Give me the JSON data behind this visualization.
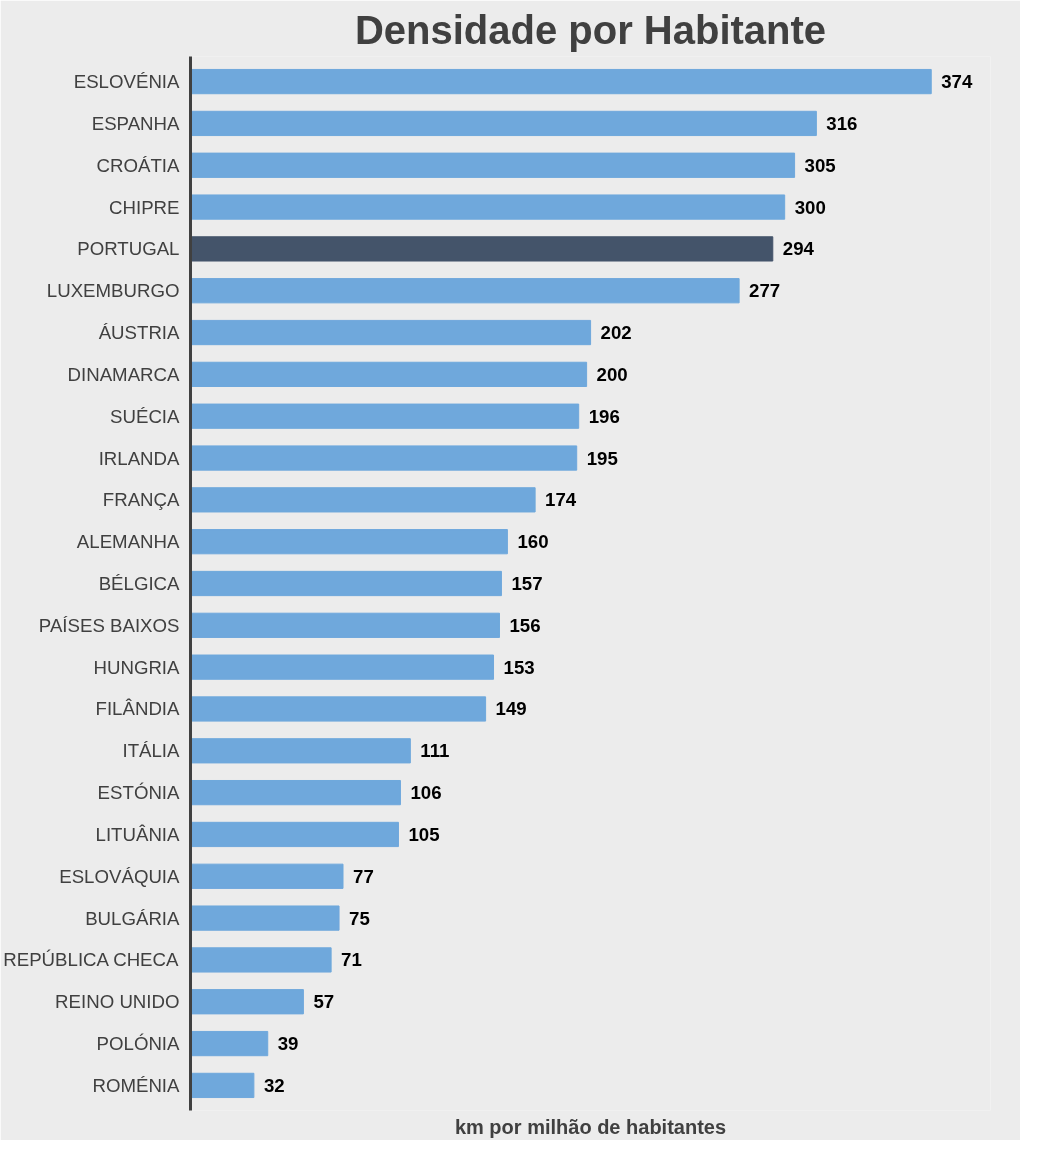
{
  "chart_data": {
    "type": "bar",
    "orientation": "horizontal",
    "title": "Densidade por Habitante",
    "xlabel": "km por milhão de habitantes",
    "categories": [
      "ESLOVÉNIA",
      "ESPANHA",
      "CROÁTIA",
      "CHIPRE",
      "PORTUGAL",
      "LUXEMBURGO",
      "ÁUSTRIA",
      "DINAMARCA",
      "SUÉCIA",
      "IRLANDA",
      "FRANÇA",
      "ALEMANHA",
      "BÉLGICA",
      "PAÍSES BAIXOS",
      "HUNGRIA",
      "FILÂNDIA",
      "ITÁLIA",
      "ESTÓNIA",
      "LITUÂNIA",
      "ESLOVÁQUIA",
      "BULGÁRIA",
      "REPÚBLICA CHECA",
      "REINO UNIDO",
      "POLÓNIA",
      "ROMÉNIA"
    ],
    "values": [
      374,
      316,
      305,
      300,
      294,
      277,
      202,
      200,
      196,
      195,
      174,
      160,
      157,
      156,
      153,
      149,
      111,
      106,
      105,
      77,
      75,
      71,
      57,
      39,
      32
    ],
    "colors": [
      "#6fa8dc",
      "#6fa8dc",
      "#6fa8dc",
      "#6fa8dc",
      "#44546a",
      "#6fa8dc",
      "#6fa8dc",
      "#6fa8dc",
      "#6fa8dc",
      "#6fa8dc",
      "#6fa8dc",
      "#6fa8dc",
      "#6fa8dc",
      "#6fa8dc",
      "#6fa8dc",
      "#6fa8dc",
      "#6fa8dc",
      "#6fa8dc",
      "#6fa8dc",
      "#6fa8dc",
      "#6fa8dc",
      "#6fa8dc",
      "#6fa8dc",
      "#6fa8dc",
      "#6fa8dc"
    ],
    "data_labels": true,
    "grid": false
  }
}
